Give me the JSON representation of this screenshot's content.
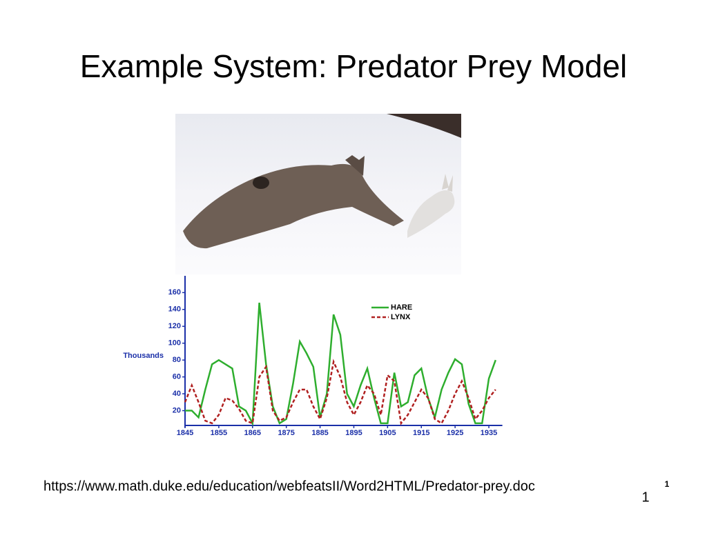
{
  "title": "Example System: Predator Prey Model",
  "chart_data": {
    "type": "line",
    "y_label": "Thousands",
    "x": [
      1845,
      1847,
      1849,
      1851,
      1853,
      1855,
      1857,
      1859,
      1861,
      1863,
      1865,
      1867,
      1869,
      1871,
      1873,
      1875,
      1877,
      1879,
      1881,
      1883,
      1885,
      1887,
      1889,
      1891,
      1893,
      1895,
      1897,
      1899,
      1901,
      1903,
      1905,
      1907,
      1909,
      1911,
      1913,
      1915,
      1917,
      1919,
      1921,
      1923,
      1925,
      1927,
      1929,
      1931,
      1933,
      1935,
      1937
    ],
    "series": [
      {
        "name": "HARE",
        "color": "#2eae2e",
        "dash": false,
        "values": [
          20,
          20,
          12,
          45,
          75,
          80,
          75,
          70,
          25,
          20,
          5,
          148,
          75,
          25,
          5,
          10,
          52,
          102,
          88,
          72,
          12,
          40,
          134,
          110,
          40,
          25,
          50,
          70,
          35,
          5,
          5,
          65,
          25,
          30,
          62,
          70,
          35,
          12,
          45,
          65,
          81,
          75,
          28,
          5,
          5,
          58,
          80
        ]
      },
      {
        "name": "LYNX",
        "color": "#b02020",
        "dash": true,
        "values": [
          30,
          50,
          30,
          8,
          5,
          15,
          35,
          32,
          22,
          8,
          5,
          60,
          72,
          20,
          8,
          12,
          30,
          45,
          45,
          25,
          10,
          35,
          78,
          60,
          30,
          15,
          30,
          50,
          40,
          15,
          62,
          55,
          5,
          15,
          30,
          45,
          35,
          10,
          5,
          20,
          40,
          55,
          35,
          10,
          20,
          35,
          45
        ]
      }
    ],
    "xlim": [
      1845,
      1939
    ],
    "ylim": [
      0,
      175
    ],
    "xticks": [
      1845,
      1855,
      1865,
      1875,
      1885,
      1895,
      1905,
      1915,
      1925,
      1935
    ],
    "yticks": [
      20,
      40,
      60,
      80,
      100,
      120,
      140,
      160
    ],
    "legend": "top-right",
    "grid": false
  },
  "source_url": "https://www.math.duke.edu/education/webfeatsII/Word2HTML/Predator-prey.doc",
  "footnote_number": "1",
  "page_number": "1"
}
